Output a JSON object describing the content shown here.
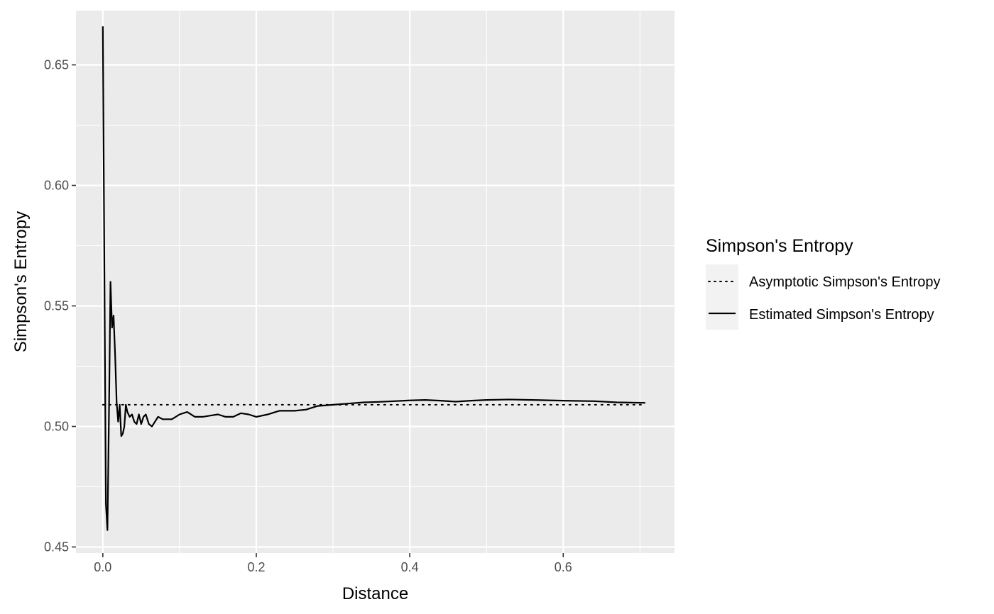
{
  "chart_data": {
    "type": "line",
    "title": "",
    "xlabel": "Distance",
    "ylabel": "Simpson's Entropy",
    "xlim": [
      -0.035,
      0.745
    ],
    "ylim": [
      0.4475,
      0.6725
    ],
    "x_ticks": [
      0.0,
      0.2,
      0.4,
      0.6
    ],
    "x_tick_labels": [
      "0.0",
      "0.2",
      "0.4",
      "0.6"
    ],
    "y_ticks": [
      0.45,
      0.5,
      0.55,
      0.6,
      0.65
    ],
    "y_tick_labels": [
      "0.45",
      "0.50",
      "0.55",
      "0.60",
      "0.65"
    ],
    "grid": true,
    "panel_background": "#ebebeb",
    "grid_color": "#ffffff",
    "line_color": "#000000",
    "legend": {
      "title": "Simpson's Entropy",
      "position": "right",
      "key_background": "#f2f2f2"
    },
    "series": [
      {
        "name": "Asymptotic Simpson's Entropy",
        "linetype": "dotted",
        "x": [
          0.0,
          0.707
        ],
        "y": [
          0.509,
          0.509
        ]
      },
      {
        "name": "Estimated Simpson's Entropy",
        "linetype": "solid",
        "x": [
          0.0,
          0.004,
          0.006,
          0.008,
          0.01,
          0.012,
          0.014,
          0.016,
          0.018,
          0.02,
          0.022,
          0.024,
          0.026,
          0.028,
          0.03,
          0.032,
          0.035,
          0.038,
          0.041,
          0.044,
          0.047,
          0.05,
          0.053,
          0.056,
          0.06,
          0.064,
          0.068,
          0.072,
          0.078,
          0.084,
          0.09,
          0.1,
          0.11,
          0.12,
          0.13,
          0.14,
          0.15,
          0.16,
          0.17,
          0.18,
          0.19,
          0.2,
          0.215,
          0.23,
          0.25,
          0.265,
          0.28,
          0.3,
          0.32,
          0.34,
          0.36,
          0.38,
          0.4,
          0.42,
          0.44,
          0.46,
          0.48,
          0.5,
          0.53,
          0.56,
          0.6,
          0.64,
          0.67,
          0.707
        ],
        "y": [
          0.666,
          0.468,
          0.457,
          0.505,
          0.56,
          0.541,
          0.546,
          0.53,
          0.51,
          0.502,
          0.509,
          0.496,
          0.497,
          0.5,
          0.509,
          0.506,
          0.504,
          0.505,
          0.502,
          0.501,
          0.505,
          0.501,
          0.504,
          0.505,
          0.501,
          0.5,
          0.502,
          0.504,
          0.503,
          0.503,
          0.503,
          0.505,
          0.506,
          0.504,
          0.504,
          0.5045,
          0.505,
          0.504,
          0.504,
          0.5055,
          0.505,
          0.504,
          0.505,
          0.5065,
          0.5065,
          0.507,
          0.5085,
          0.509,
          0.5095,
          0.51,
          0.5102,
          0.5105,
          0.5108,
          0.511,
          0.5107,
          0.5103,
          0.5107,
          0.511,
          0.5112,
          0.511,
          0.5107,
          0.5105,
          0.51,
          0.5098
        ]
      }
    ]
  }
}
